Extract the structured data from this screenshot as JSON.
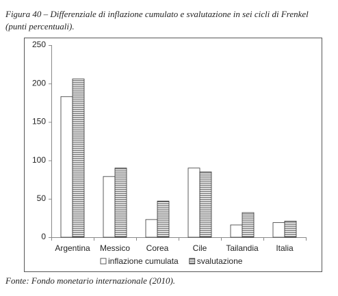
{
  "chart_data": {
    "type": "bar",
    "title": "Figura 40 – Differenziale di inflazione cumulato e svalutazione in sei cicli di Frenkel (punti percentuali).",
    "source": "Fonte: Fondo monetario internazionale (2010).",
    "categories": [
      "Argentina",
      "Messico",
      "Corea",
      "Cile",
      "Tailandia",
      "Italia"
    ],
    "series": [
      {
        "name": "inflazione cumulata",
        "color": "#ffffff",
        "pattern": "none",
        "values": [
          183,
          79,
          23,
          90,
          16,
          19
        ]
      },
      {
        "name": "svalutazione",
        "color": "#ffffff",
        "pattern": "horizontal-stripes",
        "values": [
          206,
          90,
          47,
          85,
          32,
          21
        ]
      }
    ],
    "ylim": [
      0,
      250
    ],
    "yticks": [
      0,
      50,
      100,
      150,
      200,
      250
    ],
    "grid": false,
    "legend": "bottom"
  }
}
